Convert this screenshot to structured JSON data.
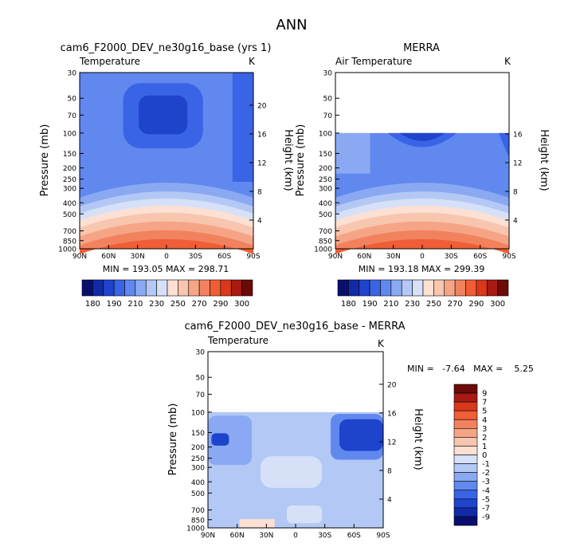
{
  "title": "ANN",
  "colors": {
    "temp": [
      "#0a0f6e",
      "#122aa6",
      "#1e44cc",
      "#3a64e6",
      "#6088ef",
      "#8aa9f2",
      "#b3c8f5",
      "#d6e1f8",
      "#fbe0d3",
      "#f8c5ae",
      "#f5a585",
      "#f2825e",
      "#ef5e36",
      "#d9381a",
      "#a81a12",
      "#6b0a08"
    ],
    "diff": [
      "#0a0f6e",
      "#122aa6",
      "#1e44cc",
      "#3a64e6",
      "#6088ef",
      "#8aa9f2",
      "#b3c8f5",
      "#d6e1f8",
      "#fbe0d3",
      "#f8c5ae",
      "#f5a585",
      "#f2825e",
      "#ef5e36",
      "#d9381a",
      "#a81a12",
      "#6b0a08"
    ]
  },
  "chart_data": [
    {
      "type": "heatmap",
      "title": "cam6_F2000_DEV_ne30g16_base (yrs 1)",
      "field_label": "Temperature",
      "units": "K",
      "ylabel": "Pressure (mb)",
      "ylabel2": "Height (km)",
      "x_ticks": [
        "90N",
        "60N",
        "30N",
        "0",
        "30S",
        "60S",
        "90S"
      ],
      "p_ticks": [
        "30",
        "50",
        "70",
        "100",
        "150",
        "200",
        "250",
        "300",
        "400",
        "500",
        "700",
        "850",
        "1000"
      ],
      "z_ticks": [
        "20",
        "16",
        "12",
        "8",
        "4"
      ],
      "stats": "MIN =  193.05   MAX =  298.71",
      "min": 193.05,
      "max": 298.71,
      "ylim": [
        1000,
        30
      ],
      "colorbar_labels": [
        "180",
        "190",
        "210",
        "230",
        "250",
        "270",
        "290",
        "300"
      ]
    },
    {
      "type": "heatmap",
      "title": "MERRA",
      "field_label": "Air Temperature",
      "units": "K",
      "ylabel": "Pressure (mb)",
      "ylabel2": "Height (km)",
      "x_ticks": [
        "90N",
        "60N",
        "30N",
        "0",
        "30S",
        "60S",
        "90S"
      ],
      "p_ticks": [
        "30",
        "50",
        "70",
        "100",
        "150",
        "200",
        "250",
        "300",
        "400",
        "500",
        "700",
        "850",
        "1000"
      ],
      "z_ticks": [
        "16",
        "12",
        "8",
        "4"
      ],
      "stats": "MIN =  193.18   MAX =  299.39",
      "min": 193.18,
      "max": 299.39,
      "ylim": [
        1000,
        30
      ],
      "colorbar_labels": [
        "180",
        "190",
        "210",
        "230",
        "250",
        "270",
        "290",
        "300"
      ]
    },
    {
      "type": "heatmap",
      "title": "cam6_F2000_DEV_ne30g16_base - MERRA",
      "field_label": "Temperature",
      "units": "K",
      "ylabel": "Pressure (mb)",
      "ylabel2": "Height (km)",
      "x_ticks": [
        "90N",
        "60N",
        "30N",
        "0",
        "30S",
        "60S",
        "90S"
      ],
      "p_ticks": [
        "30",
        "50",
        "70",
        "100",
        "150",
        "200",
        "250",
        "300",
        "400",
        "500",
        "700",
        "850",
        "1000"
      ],
      "z_ticks": [
        "20",
        "16",
        "12",
        "8",
        "4"
      ],
      "stats": "MIN =   -7.64   MAX =    5.25",
      "min": -7.64,
      "max": 5.25,
      "ylim": [
        1000,
        30
      ],
      "colorbar_labels": [
        "9",
        "7",
        "5",
        "4",
        "3",
        "2",
        "1",
        "0",
        "-1",
        "-2",
        "-3",
        "-4",
        "-5",
        "-7",
        "-9"
      ]
    }
  ]
}
